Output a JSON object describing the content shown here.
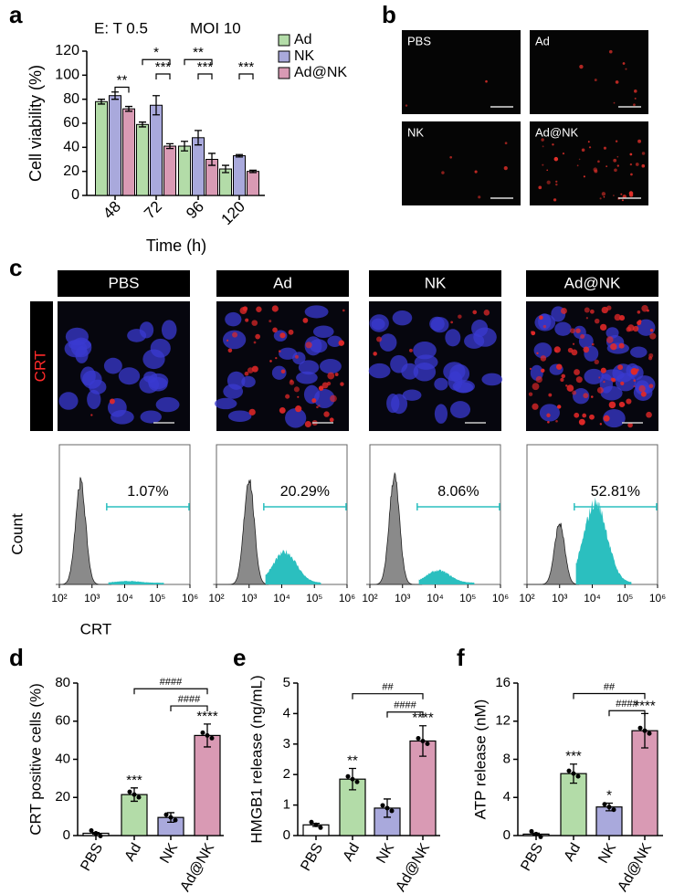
{
  "figure": {
    "panel_labels": [
      "a",
      "b",
      "c",
      "d",
      "e",
      "f"
    ]
  },
  "fluorescence": {
    "labels": [
      "PBS",
      "Ad",
      "NK",
      "Ad@NK"
    ]
  },
  "confocal": {
    "labels": [
      "PBS",
      "Ad",
      "NK",
      "Ad@NK"
    ],
    "stain": "CRT"
  },
  "chart_data": [
    {
      "type": "bar",
      "title": "E: T 0.5",
      "subtitle": "MOI 10",
      "categories": [
        "48",
        "72",
        "96",
        "120"
      ],
      "x_label": "Time (h)",
      "y_label": "Cell viability (%)",
      "ylim": [
        0,
        120
      ],
      "yticks": [
        0,
        20,
        40,
        60,
        80,
        100,
        120
      ],
      "legend": "right",
      "series": [
        {
          "name": "Ad",
          "color": "#b3dca8",
          "values": [
            78,
            59,
            41,
            22
          ],
          "errors": [
            2,
            2,
            4,
            3
          ]
        },
        {
          "name": "NK",
          "color": "#a9a9dc",
          "values": [
            83,
            75,
            48,
            33
          ],
          "errors": [
            3,
            8,
            6,
            1
          ]
        },
        {
          "name": "Ad@NK",
          "color": "#d99ab4",
          "values": [
            72,
            41,
            30,
            20
          ],
          "errors": [
            2,
            2,
            5,
            1
          ]
        }
      ],
      "annotations": [
        "**",
        "*",
        "***",
        "**",
        "***",
        "***"
      ]
    },
    {
      "type": "flow",
      "categories": [
        "PBS",
        "Ad",
        "NK",
        "Ad@NK"
      ],
      "values": [
        1.07,
        20.29,
        8.06,
        52.81
      ],
      "value_labels": [
        "1.07%",
        "20.29%",
        "8.06%",
        "52.81%"
      ],
      "x_label": "CRT",
      "y_label": "Count",
      "log_x": true,
      "xlim": [
        100,
        1000000
      ],
      "xticks": [
        {
          "value": 100,
          "label": "10²"
        },
        {
          "value": 1000,
          "label": "10³"
        },
        {
          "value": 10000,
          "label": "10⁴"
        },
        {
          "value": 100000,
          "label": "10⁵"
        },
        {
          "value": 1000000,
          "label": "10⁶"
        }
      ],
      "gate_color": "#2bbfbf"
    },
    {
      "type": "bar",
      "categories": [
        "PBS",
        "Ad",
        "NK",
        "Ad@NK"
      ],
      "y_label": "CRT positive cells (%)",
      "colors": [
        "#ffffff",
        "#b3dca8",
        "#a9a9dc",
        "#d99ab4"
      ],
      "values": [
        1.2,
        21.5,
        9.5,
        52.5
      ],
      "errors": [
        0.4,
        3.5,
        2.5,
        6
      ],
      "ylim": [
        0,
        80
      ],
      "yticks": [
        0,
        20,
        40,
        60,
        80
      ],
      "annotations": [
        "***",
        "****",
        "####",
        "####"
      ]
    },
    {
      "type": "bar",
      "categories": [
        "PBS",
        "Ad",
        "NK",
        "Ad@NK"
      ],
      "y_label": "HMGB1 release (ng/mL)",
      "colors": [
        "#ffffff",
        "#b3dca8",
        "#a9a9dc",
        "#d99ab4"
      ],
      "values": [
        0.35,
        1.85,
        0.9,
        3.1
      ],
      "errors": [
        0.05,
        0.35,
        0.3,
        0.5
      ],
      "ylim": [
        0,
        5
      ],
      "yticks": [
        0,
        1,
        2,
        3,
        4,
        5
      ],
      "annotations": [
        "**",
        "****",
        "##",
        "####"
      ]
    },
    {
      "type": "bar",
      "categories": [
        "PBS",
        "Ad",
        "NK",
        "Ad@NK"
      ],
      "y_label": "ATP release (nM)",
      "colors": [
        "#ffffff",
        "#b3dca8",
        "#a9a9dc",
        "#d99ab4"
      ],
      "values": [
        0.15,
        6.5,
        3.0,
        11.0
      ],
      "errors": [
        0.1,
        1.0,
        0.4,
        1.8
      ],
      "ylim": [
        0,
        16
      ],
      "yticks": [
        0,
        4,
        8,
        12,
        16
      ],
      "annotations": [
        "***",
        "*",
        "****",
        "##",
        "####"
      ]
    }
  ]
}
